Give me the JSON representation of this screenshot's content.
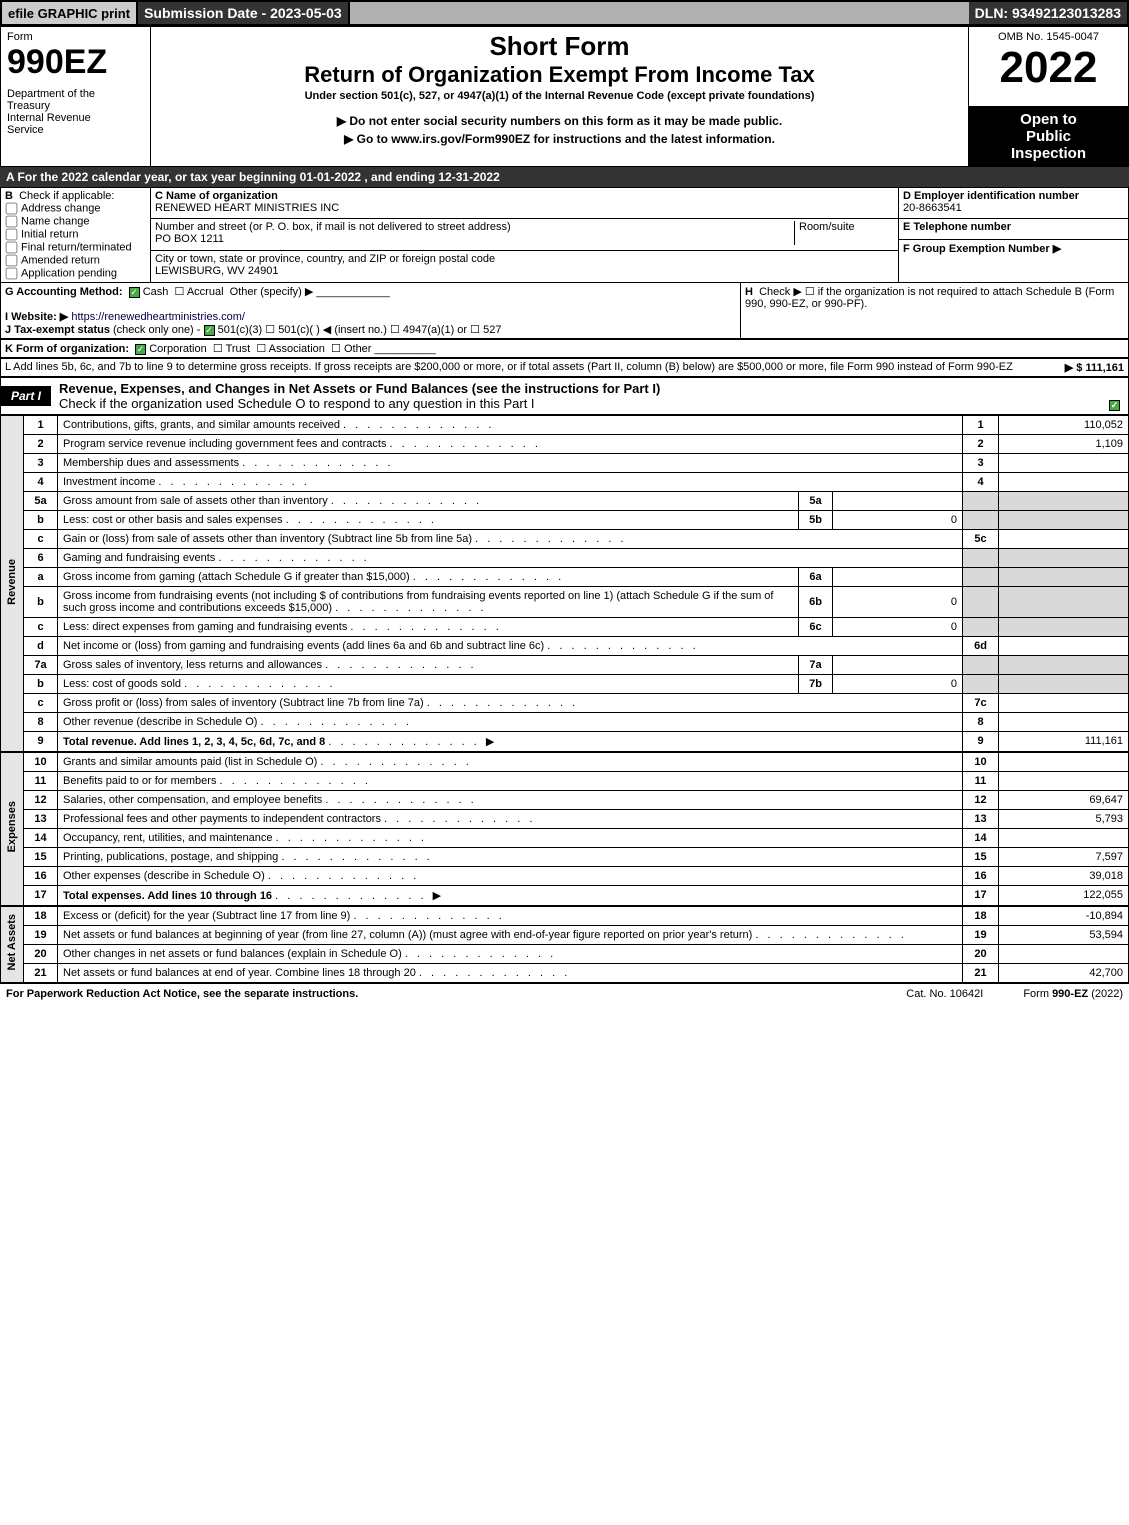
{
  "topbar": {
    "efile": "efile GRAPHIC print",
    "subdate": "Submission Date - 2023-05-03",
    "dln": "DLN: 93492123013283"
  },
  "header": {
    "form_word": "Form",
    "form_num": "990EZ",
    "dept": "Department of the Treasury\nInternal Revenue Service",
    "short": "Short Form",
    "title": "Return of Organization Exempt From Income Tax",
    "under": "Under section 501(c), 527, or 4947(a)(1) of the Internal Revenue Code (except private foundations)",
    "ssn": "▶ Do not enter social security numbers on this form as it may be made public.",
    "goto": "▶ Go to www.irs.gov/Form990EZ for instructions and the latest information.",
    "omb": "OMB No. 1545-0047",
    "year": "2022",
    "open1": "Open to",
    "open2": "Public",
    "open3": "Inspection"
  },
  "a": {
    "text": "A  For the 2022 calendar year, or tax year beginning 01-01-2022  , and ending 12-31-2022"
  },
  "b": {
    "label": "B",
    "check": "Check if applicable:",
    "opts": [
      "Address change",
      "Name change",
      "Initial return",
      "Final return/terminated",
      "Amended return",
      "Application pending"
    ]
  },
  "c": {
    "label": "C Name of organization",
    "name": "RENEWED HEART MINISTRIES INC",
    "addr_lbl": "Number and street (or P. O. box, if mail is not delivered to street address)",
    "room_lbl": "Room/suite",
    "addr": "PO BOX 1211",
    "city_lbl": "City or town, state or province, country, and ZIP or foreign postal code",
    "city": "LEWISBURG, WV  24901"
  },
  "d": {
    "label": "D Employer identification number",
    "ein": "20-8663541"
  },
  "e": {
    "label": "E Telephone number",
    "val": ""
  },
  "f": {
    "label": "F Group Exemption Number  ▶",
    "val": ""
  },
  "g": {
    "label": "G Accounting Method:",
    "cash": "Cash",
    "accr": "Accrual",
    "other": "Other (specify) ▶"
  },
  "h": {
    "label": "H",
    "text": "Check ▶  ☐  if the organization is not required to attach Schedule B (Form 990, 990-EZ, or 990-PF)."
  },
  "i": {
    "label": "I Website: ▶",
    "url": "https://renewedheartministries.com/"
  },
  "j": {
    "label": "J Tax-exempt status",
    "sub": "(check only one) -",
    "o1": "501(c)(3)",
    "o2": "501(c)(  ) ◀ (insert no.)",
    "o3": "4947(a)(1) or",
    "o4": "527"
  },
  "k": {
    "label": "K Form of organization:",
    "o1": "Corporation",
    "o2": "Trust",
    "o3": "Association",
    "o4": "Other"
  },
  "l": {
    "text": "L Add lines 5b, 6c, and 7b to line 9 to determine gross receipts. If gross receipts are $200,000 or more, or if total assets (Part II, column (B) below) are $500,000 or more, file Form 990 instead of Form 990-EZ",
    "amt": "▶ $ 111,161"
  },
  "part1": {
    "tab": "Part I",
    "title": "Revenue, Expenses, and Changes in Net Assets or Fund Balances (see the instructions for Part I)",
    "check": "Check if the organization used Schedule O to respond to any question in this Part I"
  },
  "side": {
    "rev": "Revenue",
    "exp": "Expenses",
    "na": "Net Assets"
  },
  "lines": [
    {
      "ln": "1",
      "desc": "Contributions, gifts, grants, and similar amounts received",
      "num": "1",
      "val": "110,052"
    },
    {
      "ln": "2",
      "desc": "Program service revenue including government fees and contracts",
      "num": "2",
      "val": "1,109"
    },
    {
      "ln": "3",
      "desc": "Membership dues and assessments",
      "num": "3",
      "val": ""
    },
    {
      "ln": "4",
      "desc": "Investment income",
      "num": "4",
      "val": ""
    },
    {
      "ln": "5a",
      "desc": "Gross amount from sale of assets other than inventory",
      "mid": "5a",
      "midval": "",
      "shade": true
    },
    {
      "ln": "b",
      "desc": "Less: cost or other basis and sales expenses",
      "mid": "5b",
      "midval": "0",
      "shade": true
    },
    {
      "ln": "c",
      "desc": "Gain or (loss) from sale of assets other than inventory (Subtract line 5b from line 5a)",
      "num": "5c",
      "val": ""
    },
    {
      "ln": "6",
      "desc": "Gaming and fundraising events",
      "shade": true,
      "noval": true
    },
    {
      "ln": "a",
      "desc": "Gross income from gaming (attach Schedule G if greater than $15,000)",
      "mid": "6a",
      "midval": "",
      "shade": true
    },
    {
      "ln": "b",
      "desc": "Gross income from fundraising events (not including $                    of contributions from fundraising events reported on line 1) (attach Schedule G if the sum of such gross income and contributions exceeds $15,000)",
      "mid": "6b",
      "midval": "0",
      "shade": true
    },
    {
      "ln": "c",
      "desc": "Less: direct expenses from gaming and fundraising events",
      "mid": "6c",
      "midval": "0",
      "shade": true
    },
    {
      "ln": "d",
      "desc": "Net income or (loss) from gaming and fundraising events (add lines 6a and 6b and subtract line 6c)",
      "num": "6d",
      "val": ""
    },
    {
      "ln": "7a",
      "desc": "Gross sales of inventory, less returns and allowances",
      "mid": "7a",
      "midval": "",
      "shade": true
    },
    {
      "ln": "b",
      "desc": "Less: cost of goods sold",
      "mid": "7b",
      "midval": "0",
      "shade": true
    },
    {
      "ln": "c",
      "desc": "Gross profit or (loss) from sales of inventory (Subtract line 7b from line 7a)",
      "num": "7c",
      "val": ""
    },
    {
      "ln": "8",
      "desc": "Other revenue (describe in Schedule O)",
      "num": "8",
      "val": ""
    },
    {
      "ln": "9",
      "desc": "Total revenue. Add lines 1, 2, 3, 4, 5c, 6d, 7c, and 8",
      "num": "9",
      "val": "111,161",
      "bold": true,
      "arrow": true
    }
  ],
  "exp": [
    {
      "ln": "10",
      "desc": "Grants and similar amounts paid (list in Schedule O)",
      "num": "10",
      "val": ""
    },
    {
      "ln": "11",
      "desc": "Benefits paid to or for members",
      "num": "11",
      "val": ""
    },
    {
      "ln": "12",
      "desc": "Salaries, other compensation, and employee benefits",
      "num": "12",
      "val": "69,647"
    },
    {
      "ln": "13",
      "desc": "Professional fees and other payments to independent contractors",
      "num": "13",
      "val": "5,793"
    },
    {
      "ln": "14",
      "desc": "Occupancy, rent, utilities, and maintenance",
      "num": "14",
      "val": ""
    },
    {
      "ln": "15",
      "desc": "Printing, publications, postage, and shipping",
      "num": "15",
      "val": "7,597"
    },
    {
      "ln": "16",
      "desc": "Other expenses (describe in Schedule O)",
      "num": "16",
      "val": "39,018"
    },
    {
      "ln": "17",
      "desc": "Total expenses. Add lines 10 through 16",
      "num": "17",
      "val": "122,055",
      "bold": true,
      "arrow": true
    }
  ],
  "na": [
    {
      "ln": "18",
      "desc": "Excess or (deficit) for the year (Subtract line 17 from line 9)",
      "num": "18",
      "val": "-10,894"
    },
    {
      "ln": "19",
      "desc": "Net assets or fund balances at beginning of year (from line 27, column (A)) (must agree with end-of-year figure reported on prior year's return)",
      "num": "19",
      "val": "53,594"
    },
    {
      "ln": "20",
      "desc": "Other changes in net assets or fund balances (explain in Schedule O)",
      "num": "20",
      "val": ""
    },
    {
      "ln": "21",
      "desc": "Net assets or fund balances at end of year. Combine lines 18 through 20",
      "num": "21",
      "val": "42,700"
    }
  ],
  "footer": {
    "left": "For Paperwork Reduction Act Notice, see the separate instructions.",
    "center": "Cat. No. 10642I",
    "right": "Form 990-EZ (2022)"
  }
}
